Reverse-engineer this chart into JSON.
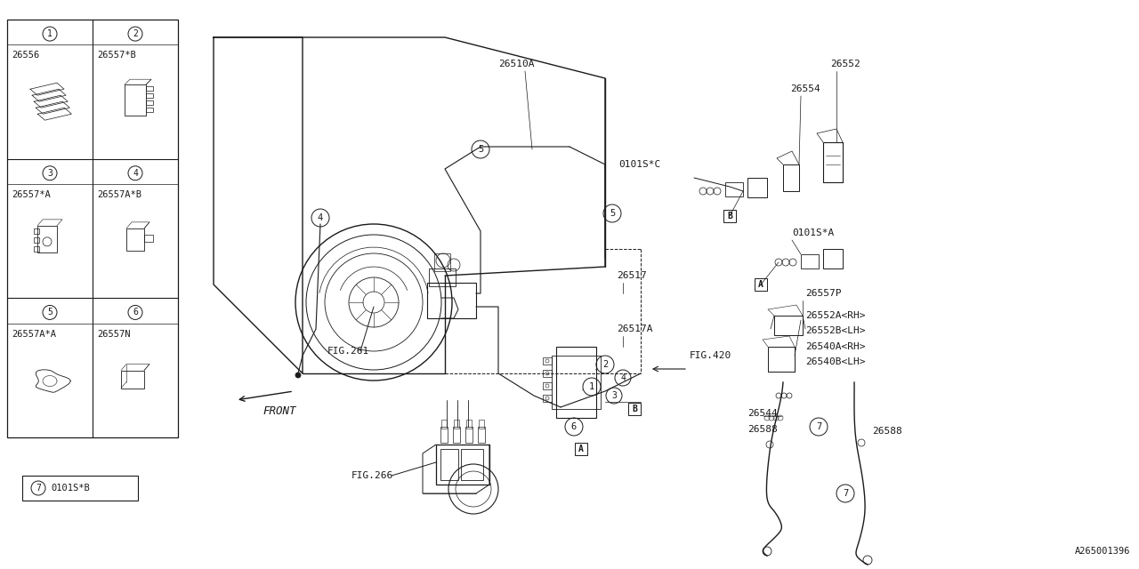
{
  "bg_color": "#ffffff",
  "line_color": "#1a1a1a",
  "fig_width": 12.8,
  "fig_height": 6.4,
  "dpi": 100,
  "diagram_id": "A265001396",
  "legend_parts": [
    "26556",
    "26557*B",
    "26557*A",
    "26557A*B",
    "26557A*A",
    "26557N"
  ],
  "legend_nums": [
    "1",
    "2",
    "3",
    "4",
    "5",
    "6"
  ],
  "legend_item7_part": "0101S*B",
  "font_name": "DejaVu Sans Mono"
}
